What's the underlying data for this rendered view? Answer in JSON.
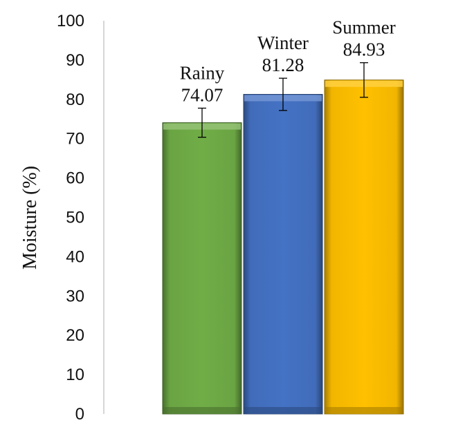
{
  "chart_data": {
    "type": "bar",
    "categories": [
      "Rainy",
      "Winter",
      "Summer"
    ],
    "values": [
      74.07,
      81.28,
      84.93
    ],
    "error": [
      3.7,
      4.1,
      4.4
    ],
    "ylabel": "Moisture (%)",
    "xlabel": "",
    "ylim": [
      0,
      100
    ],
    "yticks": [
      "0",
      "10",
      "20",
      "30",
      "40",
      "50",
      "60",
      "70",
      "80",
      "90",
      "100"
    ],
    "value_labels": [
      "74.07",
      "81.28",
      "84.93"
    ],
    "grid": false,
    "legend": "none",
    "colors": [
      "#70ad47",
      "#4472c4",
      "#ffc000"
    ]
  }
}
